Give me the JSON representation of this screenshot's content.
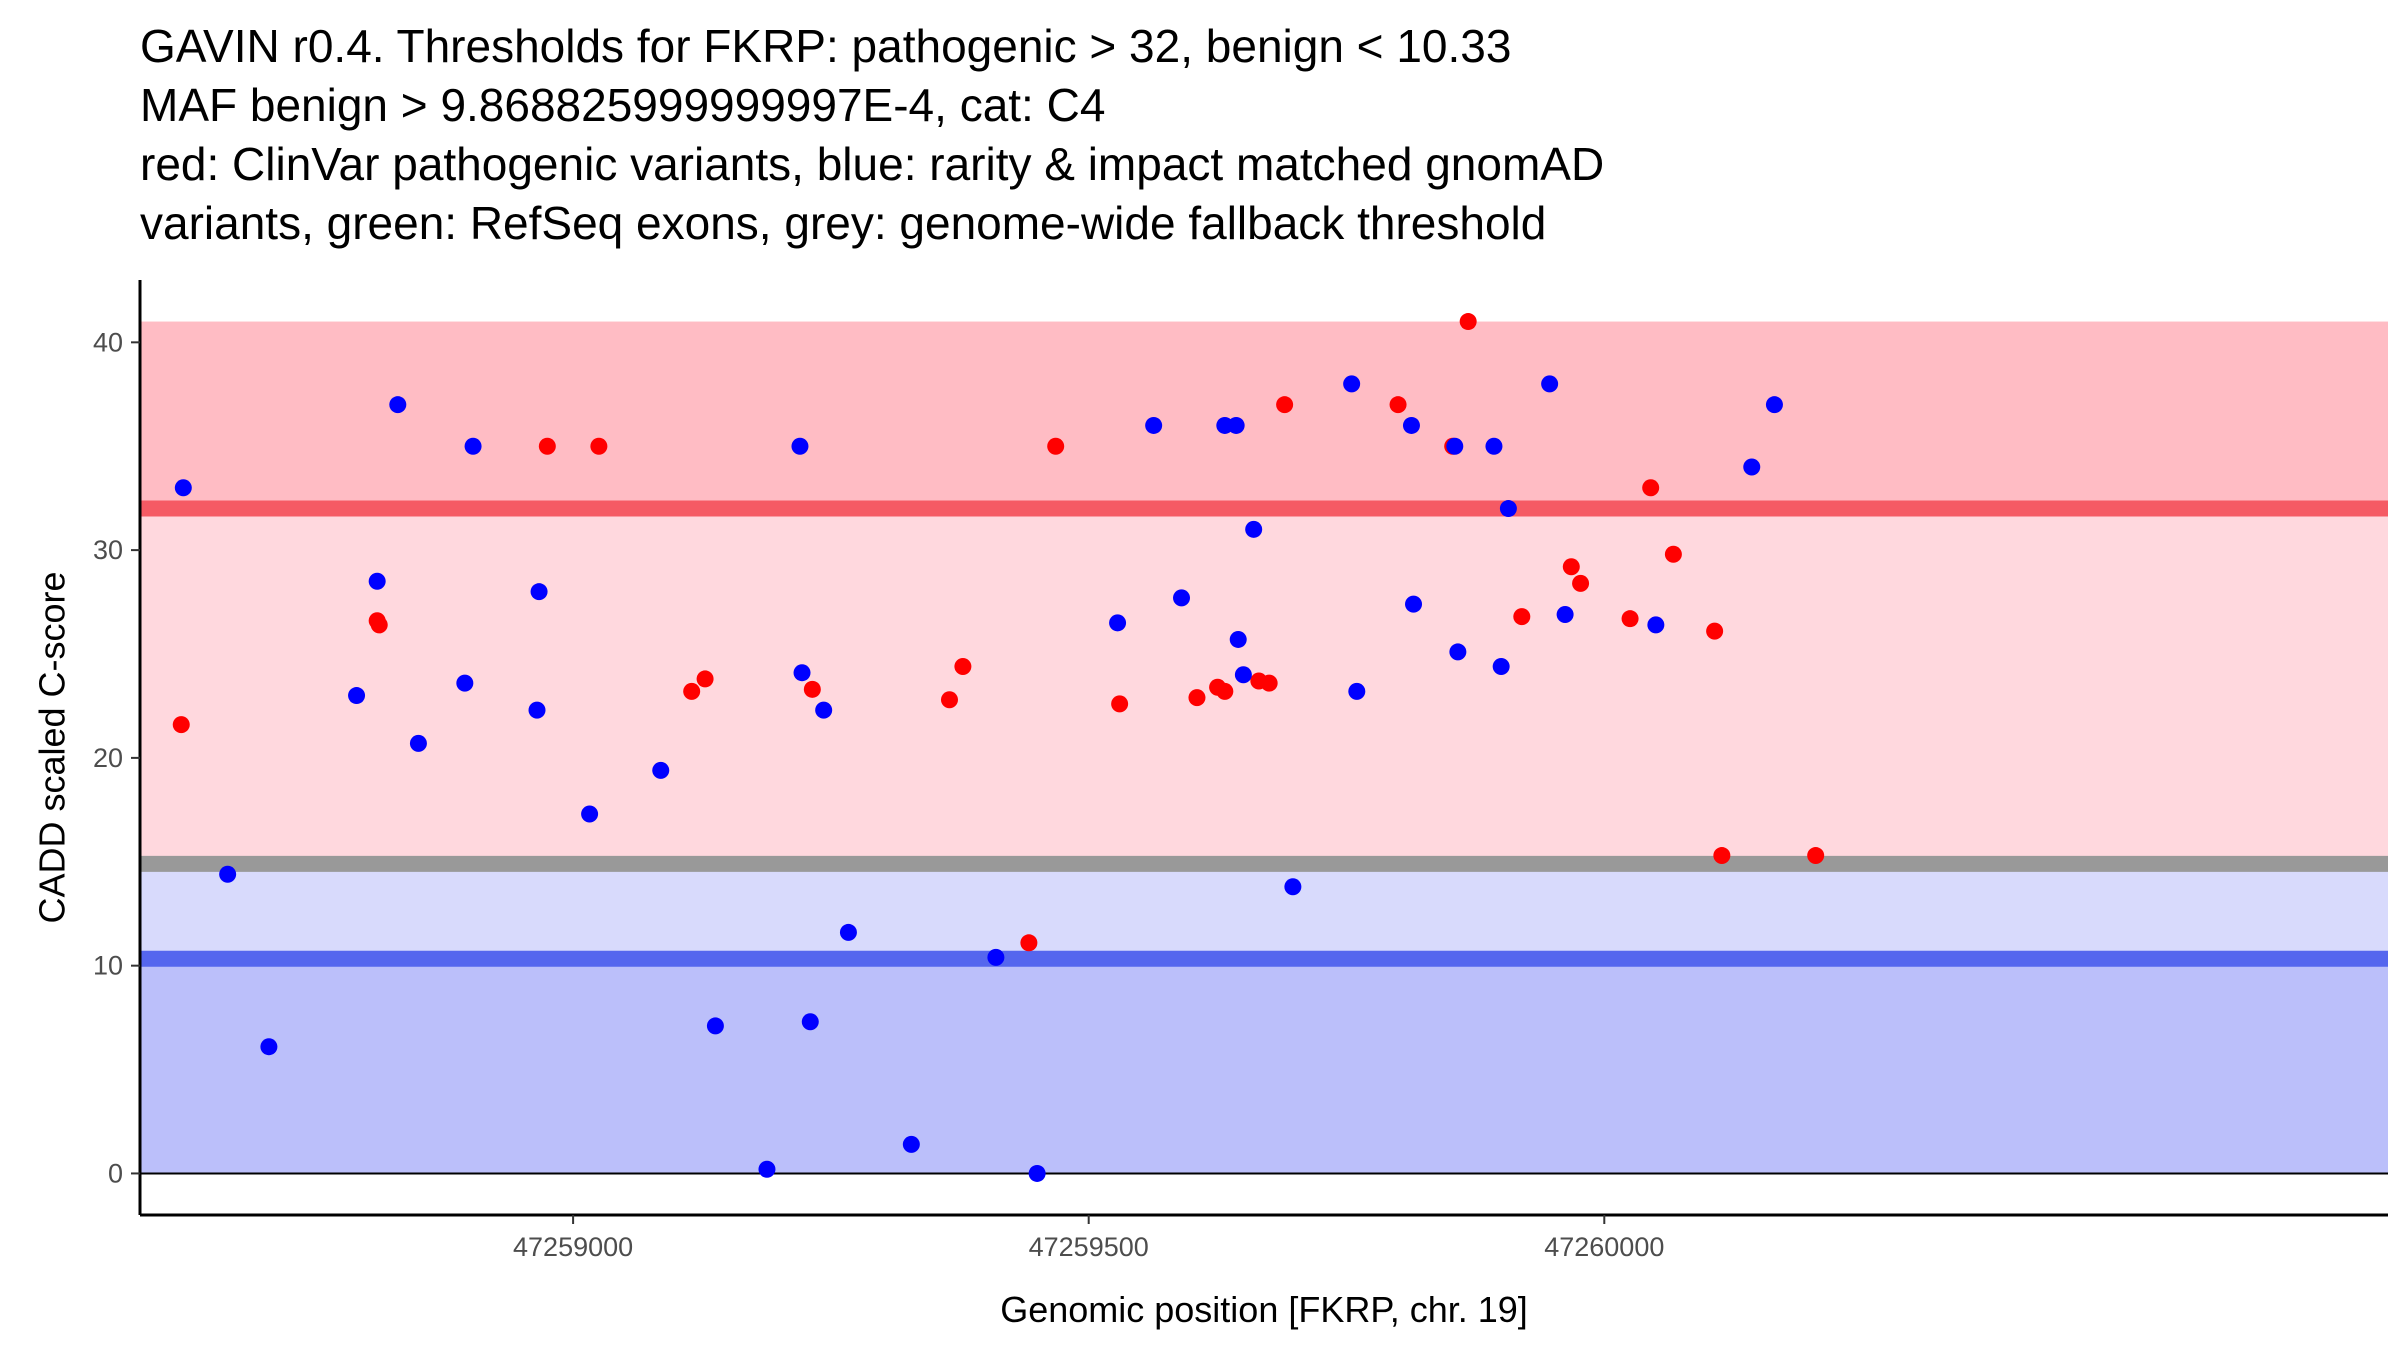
{
  "chart_data": {
    "type": "scatter",
    "title_lines": [
      "GAVIN r0.4. Thresholds for FKRP: pathogenic > 32, benign < 10.33",
      "MAF benign > 9.868825999999997E-4, cat: C4",
      "red: ClinVar pathogenic variants, blue: rarity & impact matched gnomAD",
      "variants, green: RefSeq exons, grey: genome-wide fallback threshold"
    ],
    "xlabel": "Genomic position [FKRP, chr. 19]",
    "ylabel": "CADD scaled C-score",
    "xlim": [
      47258580,
      47260760
    ],
    "ylim": [
      -2,
      43
    ],
    "x_ticks": [
      {
        "value": 47259000,
        "label": "47259000"
      },
      {
        "value": 47259500,
        "label": "47259500"
      },
      {
        "value": 47260000,
        "label": "47260000"
      }
    ],
    "y_ticks": [
      {
        "value": 0,
        "label": "0"
      },
      {
        "value": 10,
        "label": "10"
      },
      {
        "value": 20,
        "label": "20"
      },
      {
        "value": 30,
        "label": "30"
      },
      {
        "value": 40,
        "label": "40"
      }
    ],
    "grid": false,
    "thresholds": {
      "pathogenic": 32,
      "benign": 10.33,
      "fallback": 14.9
    },
    "bands": [
      {
        "name": "pathogenic-high-band",
        "y0": 32,
        "y1": 41,
        "color": "#ffbcc4"
      },
      {
        "name": "pathogenic-low-band",
        "y0": 14.9,
        "y1": 32,
        "color": "#ffd8de"
      },
      {
        "name": "benign-upper-band",
        "y0": 10.33,
        "y1": 14.9,
        "color": "#d8dafc"
      },
      {
        "name": "benign-lower-band",
        "y0": 0,
        "y1": 10.33,
        "color": "#bbbffa"
      }
    ],
    "lines": [
      {
        "name": "pathogenic-threshold-line",
        "y": 32,
        "color": "#f55a64"
      },
      {
        "name": "fallback-threshold-line",
        "y": 14.9,
        "color": "#999999"
      },
      {
        "name": "benign-threshold-line",
        "y": 10.33,
        "color": "#5566ee"
      }
    ],
    "series": [
      {
        "name": "ClinVar pathogenic variants",
        "color": "#ff0000",
        "points": [
          [
            47258620,
            21.6
          ],
          [
            47258810,
            26.6
          ],
          [
            47258812,
            26.4
          ],
          [
            47258975,
            35
          ],
          [
            47259025,
            35
          ],
          [
            47259115,
            23.2
          ],
          [
            47259128,
            23.8
          ],
          [
            47259232,
            23.3
          ],
          [
            47259365,
            22.8
          ],
          [
            47259378,
            24.4
          ],
          [
            47259442,
            11.1
          ],
          [
            47259468,
            35
          ],
          [
            47259530,
            22.6
          ],
          [
            47259605,
            22.9
          ],
          [
            47259625,
            23.4
          ],
          [
            47259632,
            23.2
          ],
          [
            47259665,
            23.7
          ],
          [
            47259675,
            23.6
          ],
          [
            47259690,
            37
          ],
          [
            47259800,
            37
          ],
          [
            47259853,
            35
          ],
          [
            47259868,
            41
          ],
          [
            47259920,
            26.8
          ],
          [
            47259968,
            29.2
          ],
          [
            47259977,
            28.4
          ],
          [
            47260025,
            26.7
          ],
          [
            47260045,
            33
          ],
          [
            47260067,
            29.8
          ],
          [
            47260107,
            26.1
          ],
          [
            47260114,
            15.3
          ],
          [
            47260205,
            15.3
          ]
        ]
      },
      {
        "name": "rarity & impact matched gnomAD variants",
        "color": "#0000ff",
        "points": [
          [
            47258622,
            33
          ],
          [
            47258665,
            14.4
          ],
          [
            47258705,
            6.1
          ],
          [
            47258790,
            23
          ],
          [
            47258810,
            28.5
          ],
          [
            47258830,
            37
          ],
          [
            47258850,
            20.7
          ],
          [
            47258895,
            23.6
          ],
          [
            47258903,
            35
          ],
          [
            47258965,
            22.3
          ],
          [
            47258967,
            28
          ],
          [
            47259016,
            17.3
          ],
          [
            47259085,
            19.4
          ],
          [
            47259138,
            7.1
          ],
          [
            47259188,
            0.2
          ],
          [
            47259220,
            35
          ],
          [
            47259222,
            24.1
          ],
          [
            47259230,
            7.3
          ],
          [
            47259243,
            22.3
          ],
          [
            47259267,
            11.6
          ],
          [
            47259328,
            1.4
          ],
          [
            47259410,
            10.4
          ],
          [
            47259450,
            0
          ],
          [
            47259528,
            26.5
          ],
          [
            47259563,
            36
          ],
          [
            47259590,
            27.7
          ],
          [
            47259632,
            36
          ],
          [
            47259643,
            36
          ],
          [
            47259645,
            25.7
          ],
          [
            47259650,
            24
          ],
          [
            47259660,
            31
          ],
          [
            47259698,
            13.8
          ],
          [
            47259755,
            38
          ],
          [
            47259760,
            23.2
          ],
          [
            47259813,
            36
          ],
          [
            47259815,
            27.4
          ],
          [
            47259855,
            35
          ],
          [
            47259858,
            25.1
          ],
          [
            47259893,
            35
          ],
          [
            47259900,
            24.4
          ],
          [
            47259907,
            32
          ],
          [
            47259947,
            38
          ],
          [
            47259962,
            26.9
          ],
          [
            47260050,
            26.4
          ],
          [
            47260143,
            34
          ],
          [
            47260165,
            37
          ]
        ]
      }
    ]
  }
}
